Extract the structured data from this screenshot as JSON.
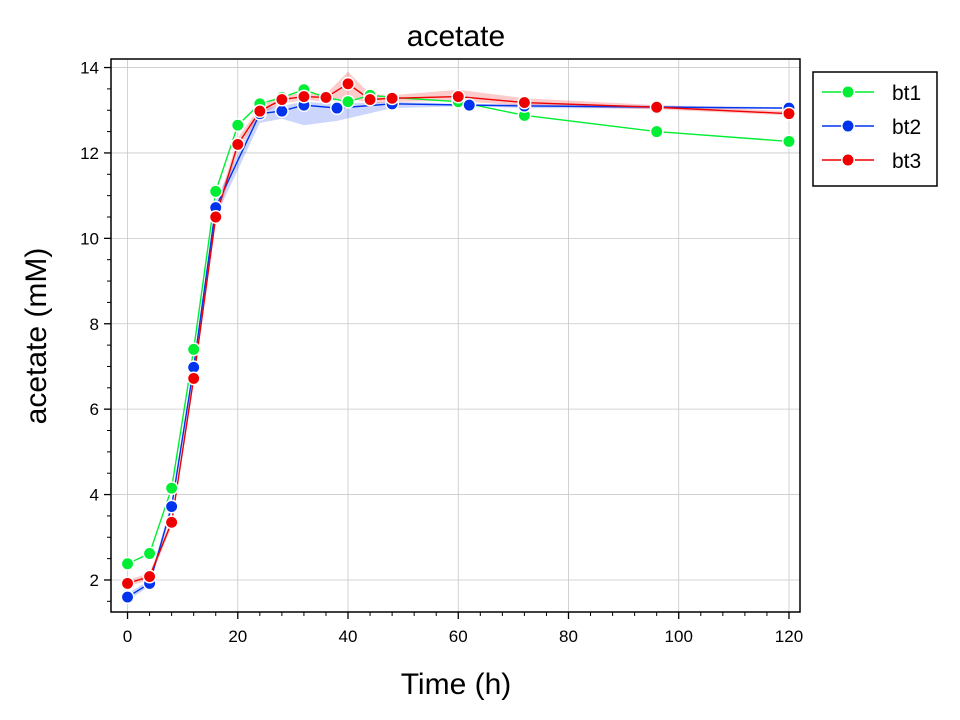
{
  "chart_data": {
    "type": "line",
    "title": "acetate",
    "xlabel": "Time (h)",
    "ylabel": "acetate (mM)",
    "xlim": [
      -3,
      122
    ],
    "ylim": [
      1.25,
      14.2
    ],
    "xticks": [
      0,
      20,
      40,
      60,
      80,
      100,
      120
    ],
    "yticks": [
      2,
      4,
      6,
      8,
      10,
      12,
      14
    ],
    "grid": true,
    "legend_position": "outside-top-right",
    "series": [
      {
        "name": "bt1",
        "color": "#00ee33",
        "x": [
          0,
          4,
          8,
          12,
          16,
          20,
          24,
          28,
          32,
          36,
          40,
          44,
          48,
          60,
          72,
          96,
          120
        ],
        "y": [
          2.38,
          2.62,
          4.15,
          7.4,
          11.1,
          12.65,
          13.15,
          13.3,
          13.48,
          13.3,
          13.2,
          13.35,
          13.3,
          13.2,
          12.88,
          12.5,
          12.27
        ],
        "band_low": [
          2.38,
          2.62,
          4.15,
          7.4,
          11.1,
          12.65,
          13.15,
          13.3,
          13.48,
          13.3,
          13.2,
          13.35,
          13.3,
          13.2,
          12.88,
          12.5,
          12.27
        ],
        "band_high": [
          2.38,
          2.62,
          4.15,
          7.4,
          11.1,
          12.65,
          13.15,
          13.3,
          13.48,
          13.3,
          13.2,
          13.35,
          13.3,
          13.2,
          12.88,
          12.5,
          12.27
        ]
      },
      {
        "name": "bt2",
        "color": "#0033ee",
        "x": [
          0,
          4,
          8,
          12,
          16,
          24,
          28,
          32,
          38,
          48,
          62,
          72,
          120
        ],
        "y": [
          1.6,
          1.92,
          3.72,
          6.98,
          10.72,
          12.92,
          12.98,
          13.12,
          13.05,
          13.15,
          13.12,
          13.1,
          13.05
        ],
        "band_low": [
          1.52,
          1.85,
          3.6,
          6.8,
          10.5,
          12.7,
          12.8,
          12.65,
          12.75,
          13.05,
          13.1,
          13.05,
          13.03
        ],
        "band_high": [
          1.68,
          2.0,
          3.85,
          7.1,
          10.9,
          13.05,
          13.1,
          13.2,
          13.15,
          13.2,
          13.14,
          13.15,
          13.07
        ]
      },
      {
        "name": "bt3",
        "color": "#ee0000",
        "x": [
          0,
          4,
          8,
          12,
          16,
          20,
          24,
          28,
          32,
          36,
          40,
          44,
          48,
          60,
          72,
          96,
          120
        ],
        "y": [
          1.92,
          2.08,
          3.35,
          6.72,
          10.5,
          12.2,
          12.98,
          13.25,
          13.32,
          13.3,
          13.62,
          13.25,
          13.28,
          13.32,
          13.18,
          13.07,
          12.92
        ],
        "band_low": [
          1.85,
          2.0,
          3.25,
          6.6,
          10.35,
          12.05,
          12.9,
          13.15,
          13.25,
          13.2,
          13.3,
          13.15,
          13.2,
          13.22,
          13.1,
          13.02,
          12.88
        ],
        "band_high": [
          2.0,
          2.16,
          3.45,
          6.85,
          10.65,
          12.35,
          13.08,
          13.35,
          13.4,
          13.38,
          13.9,
          13.38,
          13.35,
          13.48,
          13.28,
          13.12,
          12.98
        ]
      }
    ]
  }
}
